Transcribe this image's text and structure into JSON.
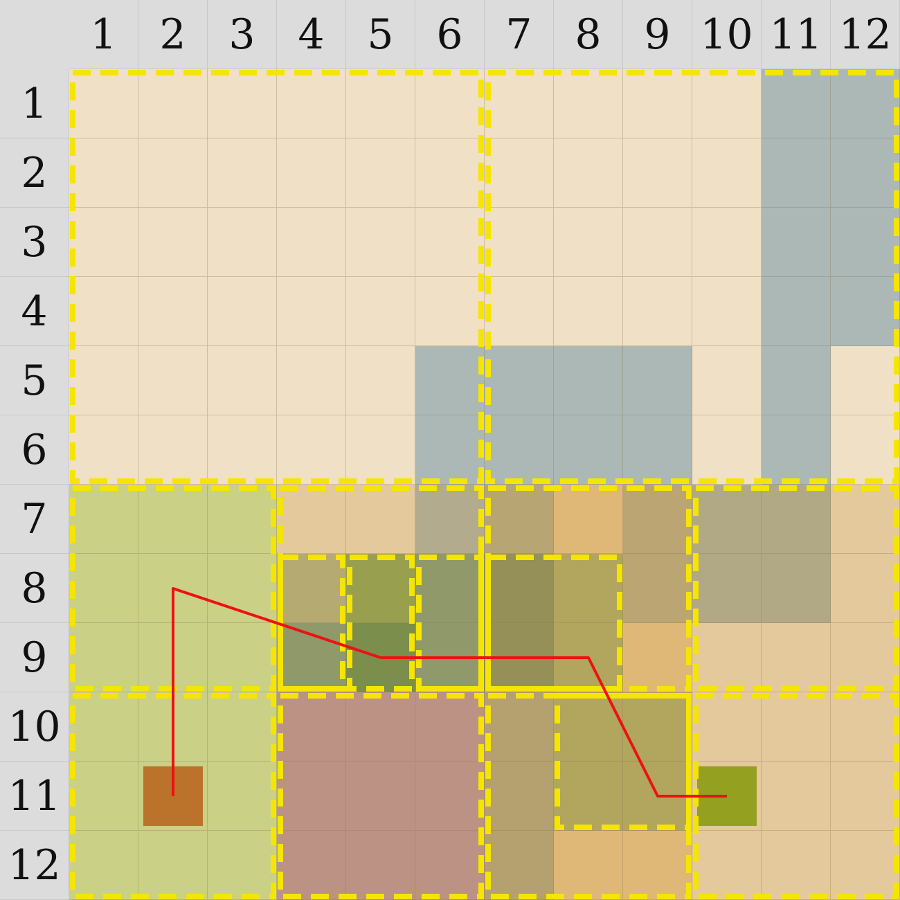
{
  "board": {
    "columns": [
      "1",
      "2",
      "3",
      "4",
      "5",
      "6",
      "7",
      "8",
      "9",
      "10",
      "11",
      "12"
    ],
    "rows": [
      "1",
      "2",
      "3",
      "4",
      "5",
      "6",
      "7",
      "8",
      "9",
      "10",
      "11",
      "12"
    ],
    "palette": {
      "C": "#f0e0c5",
      "G": "#abb8b6",
      "L": "#cad086",
      "T": "#e4c99c",
      "S": "#b2ab8e",
      "K": "#b8a574",
      "O": "#dfb878",
      "Y": "#bba573",
      "P": "#b1a986",
      "M": "#b4aa72",
      "A": "#98a050",
      "N": "#8f996a",
      "D": "#949058",
      "E": "#b2a55e",
      "F": "#7b8e4c",
      "R": "#bc9285",
      "B": "#b5a070"
    },
    "cells": [
      "CCCCCCCCCCGG",
      "CCCCCCCCCCGG",
      "CCCCCCCCCCGG",
      "CCCCCCCCCCGG",
      "CCCCCGGGGCGC",
      "CCCCCGGGGCGC",
      "LLLTTSKOYPPT",
      "LLLMANDEYPPT",
      "LLLNFNDEOTTT",
      "LLLRRRBEETTT",
      "LLLRRRBEETTT",
      "LLLRRRBOOTTT"
    ],
    "regions": [
      {
        "id": "region-top-left",
        "r0": 1,
        "c0": 1,
        "r1": 6,
        "c1": 6
      },
      {
        "id": "region-top-right",
        "r0": 1,
        "c0": 7,
        "r1": 6,
        "c1": 12
      },
      {
        "id": "region-left-mid",
        "r0": 7,
        "c0": 1,
        "r1": 9,
        "c1": 3
      },
      {
        "id": "region-mid-a",
        "r0": 7,
        "c0": 4,
        "r1": 9,
        "c1": 6
      },
      {
        "id": "region-mid-b",
        "r0": 7,
        "c0": 7,
        "r1": 9,
        "c1": 9
      },
      {
        "id": "region-right-mid",
        "r0": 7,
        "c0": 10,
        "r1": 9,
        "c1": 12
      },
      {
        "id": "region-inner-8-9-a",
        "r0": 8,
        "c0": 4,
        "r1": 9,
        "c1": 4
      },
      {
        "id": "region-inner-8-9-b",
        "r0": 8,
        "c0": 5,
        "r1": 9,
        "c1": 5
      },
      {
        "id": "region-inner-8-9-c",
        "r0": 8,
        "c0": 6,
        "r1": 9,
        "c1": 6
      },
      {
        "id": "region-inner-8-9-d",
        "r0": 8,
        "c0": 7,
        "r1": 9,
        "c1": 8
      },
      {
        "id": "region-left-bottom",
        "r0": 10,
        "c0": 1,
        "r1": 12,
        "c1": 3
      },
      {
        "id": "region-bottom-a",
        "r0": 10,
        "c0": 4,
        "r1": 12,
        "c1": 6
      },
      {
        "id": "region-bottom-b",
        "r0": 10,
        "c0": 7,
        "r1": 12,
        "c1": 9
      },
      {
        "id": "region-inner-10-11",
        "r0": 10,
        "c0": 8,
        "r1": 11,
        "c1": 9
      },
      {
        "id": "region-bottom-right",
        "r0": 10,
        "c0": 10,
        "r1": 12,
        "c1": 12
      }
    ],
    "start_marker": {
      "row": 11,
      "col": 2,
      "color": "#bb722b"
    },
    "goal_marker": {
      "row": 11,
      "col": 10,
      "color": "#94a020"
    },
    "path": [
      {
        "row": 11,
        "col": 2
      },
      {
        "row": 8,
        "col": 2
      },
      {
        "row": 9,
        "col": 5
      },
      {
        "row": 9,
        "col": 6
      },
      {
        "row": 9,
        "col": 8
      },
      {
        "row": 11,
        "col": 9
      },
      {
        "row": 11,
        "col": 10
      }
    ],
    "path_color": "#ee1111",
    "region_border_color": "#f5e500"
  }
}
